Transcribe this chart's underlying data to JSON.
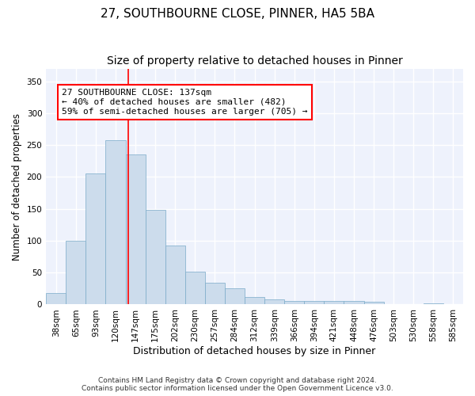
{
  "title": "27, SOUTHBOURNE CLOSE, PINNER, HA5 5BA",
  "subtitle": "Size of property relative to detached houses in Pinner",
  "xlabel": "Distribution of detached houses by size in Pinner",
  "ylabel": "Number of detached properties",
  "categories": [
    "38sqm",
    "65sqm",
    "93sqm",
    "120sqm",
    "147sqm",
    "175sqm",
    "202sqm",
    "230sqm",
    "257sqm",
    "284sqm",
    "312sqm",
    "339sqm",
    "366sqm",
    "394sqm",
    "421sqm",
    "448sqm",
    "476sqm",
    "503sqm",
    "530sqm",
    "558sqm",
    "585sqm"
  ],
  "values": [
    18,
    100,
    205,
    258,
    235,
    148,
    93,
    51,
    34,
    25,
    12,
    8,
    5,
    5,
    6,
    5,
    4,
    1,
    0,
    2,
    1
  ],
  "bar_color": "#ccdcec",
  "bar_edge_color": "#7aaac8",
  "red_line_x": 3.63,
  "annotation_box_text": "27 SOUTHBOURNE CLOSE: 137sqm\n← 40% of detached houses are smaller (482)\n59% of semi-detached houses are larger (705) →",
  "ylim": [
    0,
    370
  ],
  "yticks": [
    0,
    50,
    100,
    150,
    200,
    250,
    300,
    350
  ],
  "background_color": "#eef2fc",
  "grid_color": "#ffffff",
  "footer_line1": "Contains HM Land Registry data © Crown copyright and database right 2024.",
  "footer_line2": "Contains public sector information licensed under the Open Government Licence v3.0.",
  "title_fontsize": 11,
  "subtitle_fontsize": 10,
  "xlabel_fontsize": 9,
  "ylabel_fontsize": 8.5,
  "tick_fontsize": 7.5,
  "annotation_fontsize": 8,
  "footer_fontsize": 6.5
}
